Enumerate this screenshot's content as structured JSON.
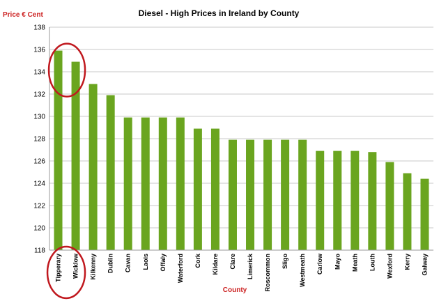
{
  "chart_data": {
    "type": "bar",
    "title": "Diesel - High Prices in Ireland by County",
    "xlabel": "County",
    "ylabel": "Price € Cent",
    "ylim": [
      118,
      138
    ],
    "yticks": [
      118,
      120,
      122,
      124,
      126,
      128,
      130,
      132,
      134,
      136,
      138
    ],
    "grid": true,
    "categories": [
      "Tipperary",
      "Wicklow",
      "Kilkenny",
      "Dublin",
      "Cavan",
      "Laois",
      "Offaly",
      "Waterford",
      "Cork",
      "Kildare",
      "Clare",
      "Limerick",
      "Roscommon",
      "Sligo",
      "Westmeath",
      "Carlow",
      "Mayo",
      "Meath",
      "Louth",
      "Wexford",
      "Kerry",
      "Galway"
    ],
    "values": [
      135.9,
      134.9,
      132.9,
      131.9,
      129.9,
      129.9,
      129.9,
      129.9,
      128.9,
      128.9,
      127.9,
      127.9,
      127.9,
      127.9,
      127.9,
      126.9,
      126.9,
      126.9,
      126.8,
      125.9,
      124.9,
      124.4
    ],
    "colors": {
      "bar": "#6aa51f",
      "axis_label": "#cc2222",
      "highlight_circle": "#c0181e"
    }
  }
}
